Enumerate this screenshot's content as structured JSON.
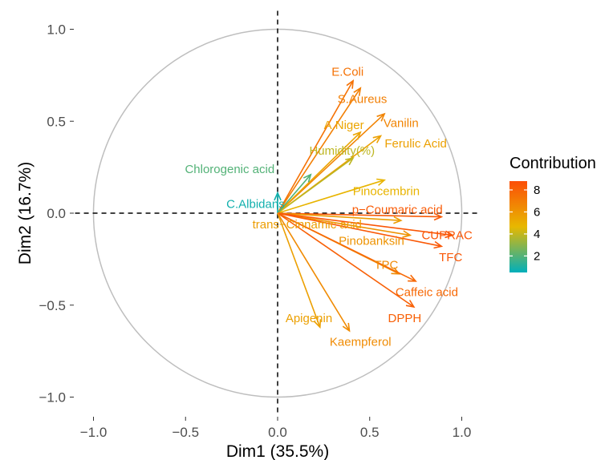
{
  "chart_data": {
    "type": "scatter",
    "subtype": "pca-variable-correlation-circle",
    "xlabel": "Dim1 (35.5%)",
    "ylabel": "Dim2 (16.7%)",
    "xlim": [
      -1.1,
      1.1
    ],
    "ylim": [
      -1.1,
      1.1
    ],
    "xticks": [
      -1.0,
      -0.5,
      0.0,
      0.5,
      1.0
    ],
    "yticks": [
      -1.0,
      -0.5,
      0.0,
      0.5,
      1.0
    ],
    "xtick_labels": [
      "−1.0",
      "−0.5",
      "0.0",
      "0.5",
      "1.0"
    ],
    "ytick_labels": [
      "−1.0",
      "−0.5",
      "0.0",
      "0.5",
      "1.0"
    ],
    "grid": false,
    "unit_circle": true,
    "legend": {
      "title": "Contribution",
      "placement": "right",
      "ticks": [
        2,
        4,
        6,
        8
      ],
      "range": [
        0.5,
        8.8
      ],
      "colors": [
        "#00AFBB",
        "#E7B800",
        "#FC4E07"
      ]
    },
    "variables": [
      {
        "name": "E.Coli",
        "x": 0.41,
        "y": 0.72,
        "contrib": 7.4
      },
      {
        "name": "S.Aureus",
        "x": 0.45,
        "y": 0.68,
        "contrib": 6.9
      },
      {
        "name": "Vanilin",
        "x": 0.58,
        "y": 0.54,
        "contrib": 6.7
      },
      {
        "name": "A.Niger",
        "x": 0.45,
        "y": 0.44,
        "contrib": 5.4
      },
      {
        "name": "Ferulic Acid",
        "x": 0.56,
        "y": 0.42,
        "contrib": 5.6
      },
      {
        "name": "Humidity(%)",
        "x": 0.41,
        "y": 0.3,
        "contrib": 3.9
      },
      {
        "name": "Chlorogenic acid",
        "x": 0.18,
        "y": 0.21,
        "contrib": 2.0
      },
      {
        "name": "C.Albidans",
        "x": 0.0,
        "y": 0.11,
        "contrib": 0.8
      },
      {
        "name": "Pinocembrin",
        "x": 0.58,
        "y": 0.18,
        "contrib": 4.8
      },
      {
        "name": "p−Coumaric acid",
        "x": 0.89,
        "y": -0.02,
        "contrib": 8.3
      },
      {
        "name": "trans−Cinnamic acid",
        "x": 0.67,
        "y": -0.04,
        "contrib": 5.7
      },
      {
        "name": "Pinobanksin",
        "x": 0.72,
        "y": -0.12,
        "contrib": 6.1
      },
      {
        "name": "CUPRAC",
        "x": 0.95,
        "y": -0.12,
        "contrib": 8.5
      },
      {
        "name": "TFC",
        "x": 0.89,
        "y": -0.18,
        "contrib": 8.4
      },
      {
        "name": "TPC",
        "x": 0.66,
        "y": -0.33,
        "contrib": 6.5
      },
      {
        "name": "Caffeic acid",
        "x": 0.75,
        "y": -0.37,
        "contrib": 7.8
      },
      {
        "name": "DPPH",
        "x": 0.74,
        "y": -0.51,
        "contrib": 8.1
      },
      {
        "name": "Apigenin",
        "x": 0.23,
        "y": -0.62,
        "contrib": 5.6
      },
      {
        "name": "Kaempferol",
        "x": 0.39,
        "y": -0.64,
        "contrib": 6.4
      }
    ],
    "labels": [
      {
        "text": "E.Coli",
        "x": 0.38,
        "y": 0.77
      },
      {
        "text": "S.Aureus",
        "x": 0.46,
        "y": 0.62
      },
      {
        "text": "Vanilin",
        "x": 0.67,
        "y": 0.49
      },
      {
        "text": "A.Niger",
        "x": 0.36,
        "y": 0.48
      },
      {
        "text": "Ferulic Acid",
        "x": 0.75,
        "y": 0.38
      },
      {
        "text": "Humidity(%)",
        "x": 0.35,
        "y": 0.34
      },
      {
        "text": "Chlorogenic acid",
        "x": -0.26,
        "y": 0.24
      },
      {
        "text": "C.Albidans",
        "x": -0.12,
        "y": 0.05
      },
      {
        "text": "Pinocembrin",
        "x": 0.59,
        "y": 0.12
      },
      {
        "text": "p−Coumaric acid",
        "x": 0.65,
        "y": 0.02
      },
      {
        "text": "trans−Cinnamic acid",
        "x": 0.16,
        "y": -0.06
      },
      {
        "text": "Pinobanksin",
        "x": 0.51,
        "y": -0.15
      },
      {
        "text": "CUPRAC",
        "x": 0.92,
        "y": -0.12
      },
      {
        "text": "TFC",
        "x": 0.94,
        "y": -0.24
      },
      {
        "text": "TPC",
        "x": 0.59,
        "y": -0.28
      },
      {
        "text": "Caffeic acid",
        "x": 0.81,
        "y": -0.43
      },
      {
        "text": "DPPH",
        "x": 0.69,
        "y": -0.57
      },
      {
        "text": "Apigenin",
        "x": 0.17,
        "y": -0.57
      },
      {
        "text": "Kaempferol",
        "x": 0.45,
        "y": -0.7
      }
    ]
  }
}
